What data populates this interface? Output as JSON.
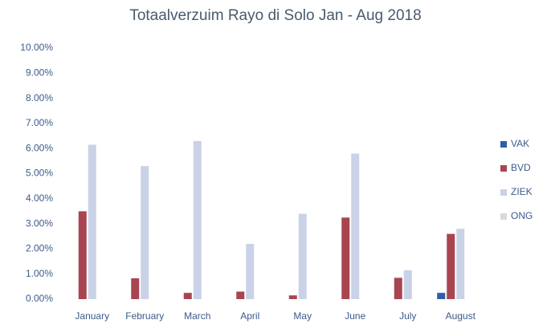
{
  "chart_data": {
    "type": "bar",
    "title": "Totaalverzuim Rayo di Solo Jan - Aug 2018",
    "categories": [
      "January",
      "February",
      "March",
      "April",
      "May",
      "June",
      "July",
      "August"
    ],
    "series": [
      {
        "name": "VAK",
        "color": "#2e5fa8",
        "values": [
          0,
          0,
          0,
          0,
          0,
          0,
          0,
          0.25
        ]
      },
      {
        "name": "BVD",
        "color": "#a84550",
        "values": [
          3.5,
          0.83,
          0.25,
          0.3,
          0.15,
          3.25,
          0.85,
          2.6
        ]
      },
      {
        "name": "ZIEK",
        "color": "#c9d2e6",
        "values": [
          6.15,
          5.3,
          6.3,
          2.2,
          3.4,
          5.8,
          1.15,
          2.8
        ]
      },
      {
        "name": "ONG",
        "color": "#d9d9d9",
        "values": [
          0,
          0,
          0,
          0,
          0,
          0,
          0,
          0
        ]
      }
    ],
    "ylim": [
      0,
      10
    ],
    "yticks": [
      {
        "value": 0,
        "label": "0.00%"
      },
      {
        "value": 1,
        "label": "1.00%"
      },
      {
        "value": 2,
        "label": "2.00%"
      },
      {
        "value": 3,
        "label": "3.00%"
      },
      {
        "value": 4,
        "label": "4.00%"
      },
      {
        "value": 5,
        "label": "5.00%"
      },
      {
        "value": 6,
        "label": "6.00%"
      },
      {
        "value": 7,
        "label": "7.00%"
      },
      {
        "value": 8,
        "label": "8.00%"
      },
      {
        "value": 9,
        "label": "9.00%"
      },
      {
        "value": 10,
        "label": "10.00%"
      }
    ],
    "grid": false,
    "legend": "right"
  }
}
